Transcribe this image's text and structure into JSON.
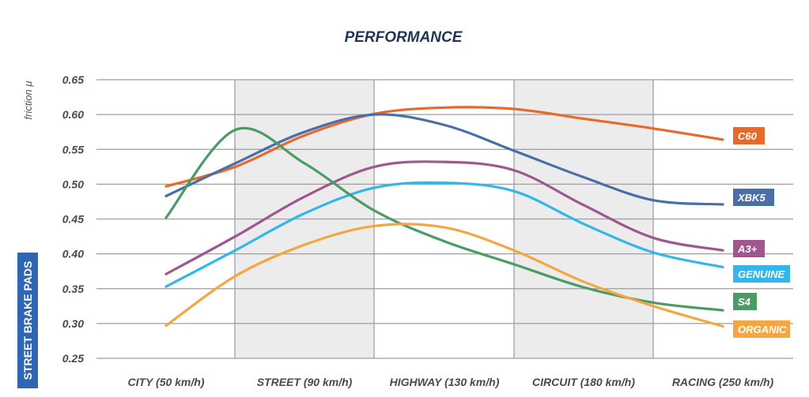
{
  "chart_data": {
    "type": "line",
    "title": "PERFORMANCE",
    "ylabel": "friction μ",
    "side_label": "STREET BRAKE PADS",
    "categories": [
      "CITY (50 km/h)",
      "STREET (90 km/h)",
      "HIGHWAY (130 km/h)",
      "CIRCUIT (180 km/h)",
      "RACING (250 km/h)"
    ],
    "y_ticks": [
      "0.65",
      "0.60",
      "0.55",
      "0.50",
      "0.45",
      "0.40",
      "0.35",
      "0.30",
      "0.25"
    ],
    "ylim": [
      0.25,
      0.65
    ],
    "grid": true,
    "shaded_bands": [
      "STREET (90 km/h)",
      "CIRCUIT (180 km/h)"
    ],
    "legend": "right",
    "x": [
      0,
      0.5,
      1,
      1.5,
      2,
      2.5,
      3,
      3.5,
      4
    ],
    "series": [
      {
        "name": "C60",
        "color": "#e8692a",
        "values": [
          0.497,
          0.525,
          0.57,
          0.601,
          0.61,
          0.608,
          0.594,
          0.58,
          0.564
        ]
      },
      {
        "name": "XBK5",
        "color": "#4a6fa8",
        "values": [
          0.483,
          0.53,
          0.575,
          0.6,
          0.585,
          0.548,
          0.51,
          0.477,
          0.471
        ]
      },
      {
        "name": "A3+",
        "color": "#a0568f",
        "values": [
          0.371,
          0.425,
          0.482,
          0.525,
          0.532,
          0.52,
          0.47,
          0.423,
          0.405
        ]
      },
      {
        "name": "GENUINE",
        "color": "#35b6ea",
        "values": [
          0.353,
          0.405,
          0.458,
          0.495,
          0.502,
          0.49,
          0.443,
          0.402,
          0.381
        ]
      },
      {
        "name": "S4",
        "color": "#4a9c64",
        "values": [
          0.452,
          0.578,
          0.53,
          0.462,
          0.418,
          0.385,
          0.352,
          0.33,
          0.319
        ]
      },
      {
        "name": "ORGANIC",
        "color": "#f5a642",
        "values": [
          0.297,
          0.368,
          0.413,
          0.44,
          0.438,
          0.405,
          0.36,
          0.325,
          0.296
        ]
      }
    ]
  },
  "colors": {
    "title": "#1f3556",
    "side_badge": "#2f66b1",
    "band": "#ececed",
    "grid": "#9a9ea5"
  }
}
